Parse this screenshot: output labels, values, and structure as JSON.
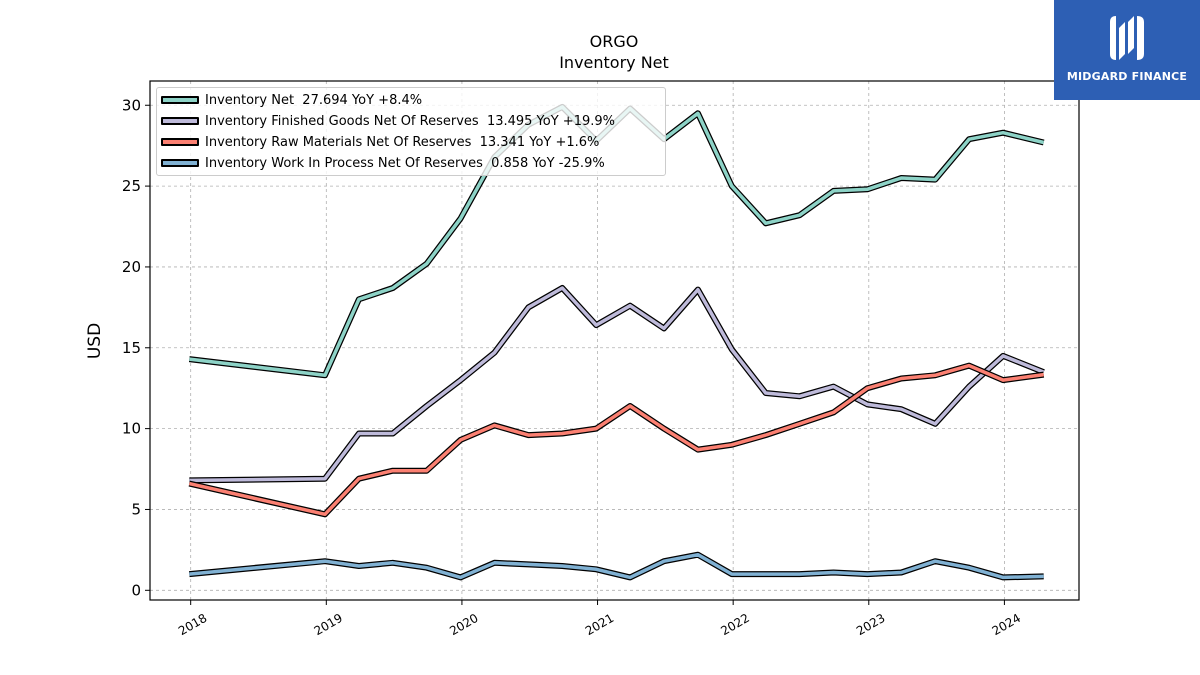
{
  "chart_data": {
    "type": "line",
    "title": "ORGO",
    "subtitle": "Inventory Net",
    "xlabel": "",
    "ylabel": "USD",
    "xlim": [
      2017.7,
      2024.55
    ],
    "ylim": [
      -0.6,
      31.5
    ],
    "x_ticks": [
      2018,
      2019,
      2020,
      2021,
      2022,
      2023,
      2024
    ],
    "x_tick_labels": [
      "2018",
      "2019",
      "2020",
      "2021",
      "2022",
      "2023",
      "2024"
    ],
    "y_ticks": [
      0,
      5,
      10,
      15,
      20,
      25,
      30
    ],
    "y_tick_labels": [
      "0",
      "5",
      "10",
      "15",
      "20",
      "25",
      "30"
    ],
    "grid": true,
    "legend_position": "top-left",
    "x": [
      2017.99,
      2018.99,
      2019.24,
      2019.49,
      2019.74,
      2019.99,
      2020.24,
      2020.49,
      2020.74,
      2020.99,
      2021.24,
      2021.49,
      2021.74,
      2021.99,
      2022.24,
      2022.49,
      2022.74,
      2022.99,
      2023.24,
      2023.49,
      2023.74,
      2023.99,
      2024.29
    ],
    "series": [
      {
        "name": "Inventory Net",
        "legend_label": "Inventory Net  27.694 YoY +8.4%",
        "color": "#8dd3c7",
        "values": [
          14.3,
          13.3,
          18.0,
          18.7,
          20.2,
          23.0,
          26.8,
          28.8,
          29.9,
          27.8,
          29.8,
          27.9,
          29.5,
          25.0,
          22.7,
          23.2,
          24.7,
          24.8,
          25.5,
          25.4,
          27.9,
          28.3,
          27.694
        ]
      },
      {
        "name": "Inventory Finished Goods Net Of Reserves",
        "legend_label": "Inventory Finished Goods Net Of Reserves  13.495 YoY +19.9%",
        "color": "#bebada",
        "values": [
          6.8,
          6.9,
          9.7,
          9.7,
          11.4,
          13.0,
          14.7,
          17.5,
          18.7,
          16.4,
          17.6,
          16.2,
          18.6,
          14.9,
          12.2,
          12.0,
          12.6,
          11.5,
          11.2,
          10.3,
          12.6,
          14.5,
          13.495
        ]
      },
      {
        "name": "Inventory Raw Materials Net Of Reserves",
        "legend_label": "Inventory Raw Materials Net Of Reserves  13.341 YoY +1.6%",
        "color": "#fb8072",
        "values": [
          6.6,
          4.7,
          6.9,
          7.4,
          7.4,
          9.3,
          10.2,
          9.6,
          9.7,
          10.0,
          11.4,
          10.0,
          8.7,
          9.0,
          9.6,
          10.3,
          11.0,
          12.5,
          13.1,
          13.3,
          13.9,
          13.0,
          13.341
        ]
      },
      {
        "name": "Inventory Work In Process Net Of Reserves",
        "legend_label": "Inventory Work In Process Net Of Reserves  0.858 YoY -25.9%",
        "color": "#80b1d3",
        "values": [
          1.0,
          1.8,
          1.5,
          1.7,
          1.4,
          0.8,
          1.7,
          1.6,
          1.5,
          1.3,
          0.8,
          1.8,
          2.2,
          1.0,
          1.0,
          1.0,
          1.1,
          1.0,
          1.1,
          1.8,
          1.4,
          0.8,
          0.858
        ]
      }
    ]
  },
  "logo": {
    "text": "MIDGARD FINANCE",
    "background": "#2d5fb4"
  }
}
